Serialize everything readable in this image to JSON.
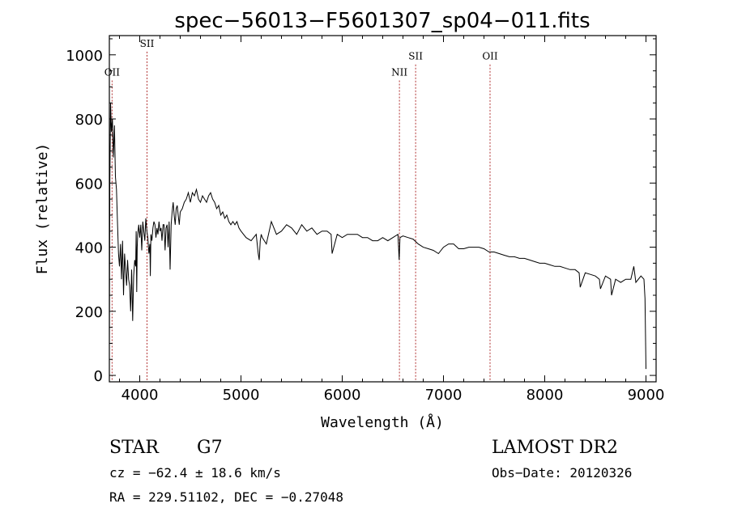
{
  "chart_data": {
    "type": "line",
    "title": "spec−56013−F5601307_sp04−011.fits",
    "xlabel": "Wavelength (Å)",
    "ylabel": "Flux (relative)",
    "xlim": [
      3700,
      9100
    ],
    "ylim": [
      -20,
      1060
    ],
    "x_ticks": [
      4000,
      5000,
      6000,
      7000,
      8000,
      9000
    ],
    "y_ticks": [
      0,
      200,
      400,
      600,
      800,
      1000
    ],
    "series": [
      {
        "x": [
          3700,
          3705,
          3712,
          3720,
          3730,
          3740,
          3750,
          3760,
          3770,
          3780,
          3790,
          3800,
          3810,
          3820,
          3830,
          3840,
          3850,
          3860,
          3870,
          3880,
          3890,
          3900,
          3910,
          3920,
          3930,
          3935,
          3940,
          3950,
          3960,
          3965,
          3970,
          3975,
          3980,
          3990,
          4000,
          4010,
          4020,
          4030,
          4040,
          4050,
          4060,
          4070,
          4080,
          4090,
          4100,
          4105,
          4110,
          4120,
          4130,
          4140,
          4150,
          4160,
          4170,
          4180,
          4190,
          4200,
          4210,
          4220,
          4230,
          4240,
          4250,
          4260,
          4270,
          4280,
          4290,
          4300,
          4310,
          4320,
          4330,
          4340,
          4350,
          4360,
          4370,
          4380,
          4390,
          4400,
          4420,
          4440,
          4460,
          4480,
          4500,
          4520,
          4540,
          4560,
          4580,
          4600,
          4620,
          4640,
          4660,
          4680,
          4700,
          4720,
          4740,
          4760,
          4780,
          4800,
          4820,
          4840,
          4860,
          4880,
          4900,
          4920,
          4940,
          4960,
          4980,
          5000,
          5050,
          5100,
          5150,
          5170,
          5180,
          5190,
          5200,
          5210,
          5250,
          5300,
          5350,
          5400,
          5450,
          5500,
          5550,
          5600,
          5650,
          5700,
          5750,
          5800,
          5850,
          5890,
          5900,
          5950,
          6000,
          6050,
          6100,
          6150,
          6200,
          6250,
          6300,
          6350,
          6400,
          6450,
          6500,
          6550,
          6562,
          6565,
          6570,
          6600,
          6650,
          6700,
          6750,
          6800,
          6850,
          6900,
          6950,
          7000,
          7050,
          7100,
          7150,
          7200,
          7250,
          7300,
          7350,
          7400,
          7450,
          7500,
          7550,
          7600,
          7650,
          7700,
          7750,
          7800,
          7850,
          7900,
          7950,
          8000,
          8050,
          8100,
          8150,
          8200,
          8250,
          8300,
          8340,
          8350,
          8400,
          8450,
          8500,
          8540,
          8550,
          8600,
          8650,
          8660,
          8700,
          8750,
          8800,
          8850,
          8880,
          8900,
          8950,
          8980,
          8990,
          9000
        ],
        "y": [
          90,
          600,
          850,
          760,
          800,
          680,
          780,
          620,
          580,
          480,
          380,
          340,
          410,
          300,
          420,
          250,
          380,
          330,
          280,
          360,
          300,
          280,
          200,
          330,
          170,
          240,
          310,
          360,
          340,
          450,
          260,
          400,
          440,
          470,
          430,
          470,
          390,
          480,
          450,
          420,
          490,
          450,
          430,
          380,
          410,
          310,
          440,
          420,
          460,
          480,
          470,
          430,
          460,
          440,
          480,
          450,
          460,
          420,
          470,
          470,
          390,
          460,
          470,
          400,
          480,
          330,
          470,
          510,
          540,
          500,
          470,
          520,
          530,
          500,
          470,
          510,
          520,
          540,
          550,
          570,
          540,
          570,
          560,
          580,
          550,
          540,
          560,
          550,
          540,
          560,
          570,
          550,
          540,
          520,
          530,
          500,
          510,
          490,
          500,
          480,
          470,
          480,
          470,
          480,
          460,
          450,
          430,
          420,
          440,
          380,
          360,
          420,
          440,
          430,
          410,
          480,
          440,
          450,
          470,
          460,
          440,
          470,
          450,
          460,
          440,
          450,
          450,
          440,
          380,
          440,
          430,
          440,
          440,
          440,
          430,
          430,
          420,
          420,
          430,
          420,
          430,
          440,
          360,
          380,
          430,
          435,
          430,
          425,
          410,
          400,
          395,
          390,
          380,
          400,
          410,
          410,
          395,
          395,
          400,
          400,
          400,
          395,
          385,
          385,
          380,
          375,
          370,
          370,
          365,
          365,
          360,
          355,
          350,
          350,
          345,
          340,
          340,
          335,
          330,
          330,
          320,
          275,
          320,
          315,
          310,
          300,
          270,
          310,
          300,
          250,
          300,
          290,
          300,
          300,
          340,
          290,
          310,
          300,
          240,
          20
        ]
      }
    ],
    "annotations": [
      {
        "label": "OII",
        "x": 3727,
        "label_y": 935
      },
      {
        "label": "SII",
        "x": 4072,
        "label_y": 1025
      },
      {
        "label": "NII",
        "x": 6565,
        "label_y": 935
      },
      {
        "label": "SII",
        "x": 6725,
        "label_y": 985
      },
      {
        "label": "OII",
        "x": 7460,
        "label_y": 985
      }
    ]
  },
  "info": {
    "object_type": "STAR",
    "subclass": "G7",
    "cz": "cz = −62.4 ± 18.6 km/s",
    "coords": "RA = 229.51102, DEC =  −0.27048",
    "survey": "LAMOST DR2",
    "obs_date": "Obs−Date: 20120326"
  }
}
